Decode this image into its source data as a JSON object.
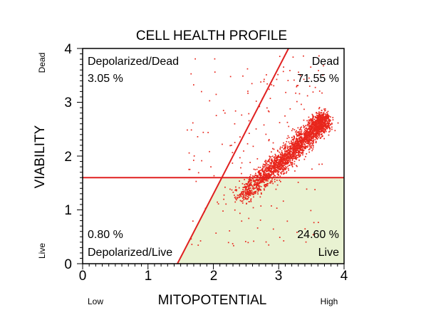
{
  "chart_data": {
    "type": "scatter",
    "title": "CELL HEALTH PROFILE",
    "xlabel": "MITOPOTENTIAL",
    "ylabel": "VIABILITY",
    "xlim": [
      0,
      4
    ],
    "ylim": [
      0,
      4
    ],
    "x_ticks": [
      "0",
      "1",
      "2",
      "3",
      "4"
    ],
    "y_ticks": [
      "0",
      "1",
      "2",
      "3",
      "4"
    ],
    "x_end_labels": {
      "low": "Low",
      "high": "High"
    },
    "y_end_labels": {
      "low": "Live",
      "high": "Dead"
    },
    "grid": false,
    "point_color": "#e8261c",
    "gate_line_color": "#e02020",
    "live_region_fill": "#e9f2d2",
    "gates": {
      "horizontal_y": 1.6,
      "diagonal": {
        "from": [
          1.45,
          0.0
        ],
        "to": [
          3.15,
          4.0
        ]
      }
    },
    "quadrants": [
      {
        "name": "Depolarized/Dead",
        "percent": "3.05 %"
      },
      {
        "name": "Dead",
        "percent": "71.55 %"
      },
      {
        "name": "Depolarized/Live",
        "percent": "0.80 %"
      },
      {
        "name": "Live",
        "percent": "24.60 %"
      }
    ],
    "cluster": {
      "description_points": [
        [
          2.4,
          1.2
        ],
        [
          2.7,
          1.55
        ],
        [
          3.0,
          1.85
        ],
        [
          3.3,
          2.2
        ],
        [
          3.55,
          2.5
        ],
        [
          3.7,
          2.7
        ]
      ],
      "approx_events": 2500
    }
  }
}
